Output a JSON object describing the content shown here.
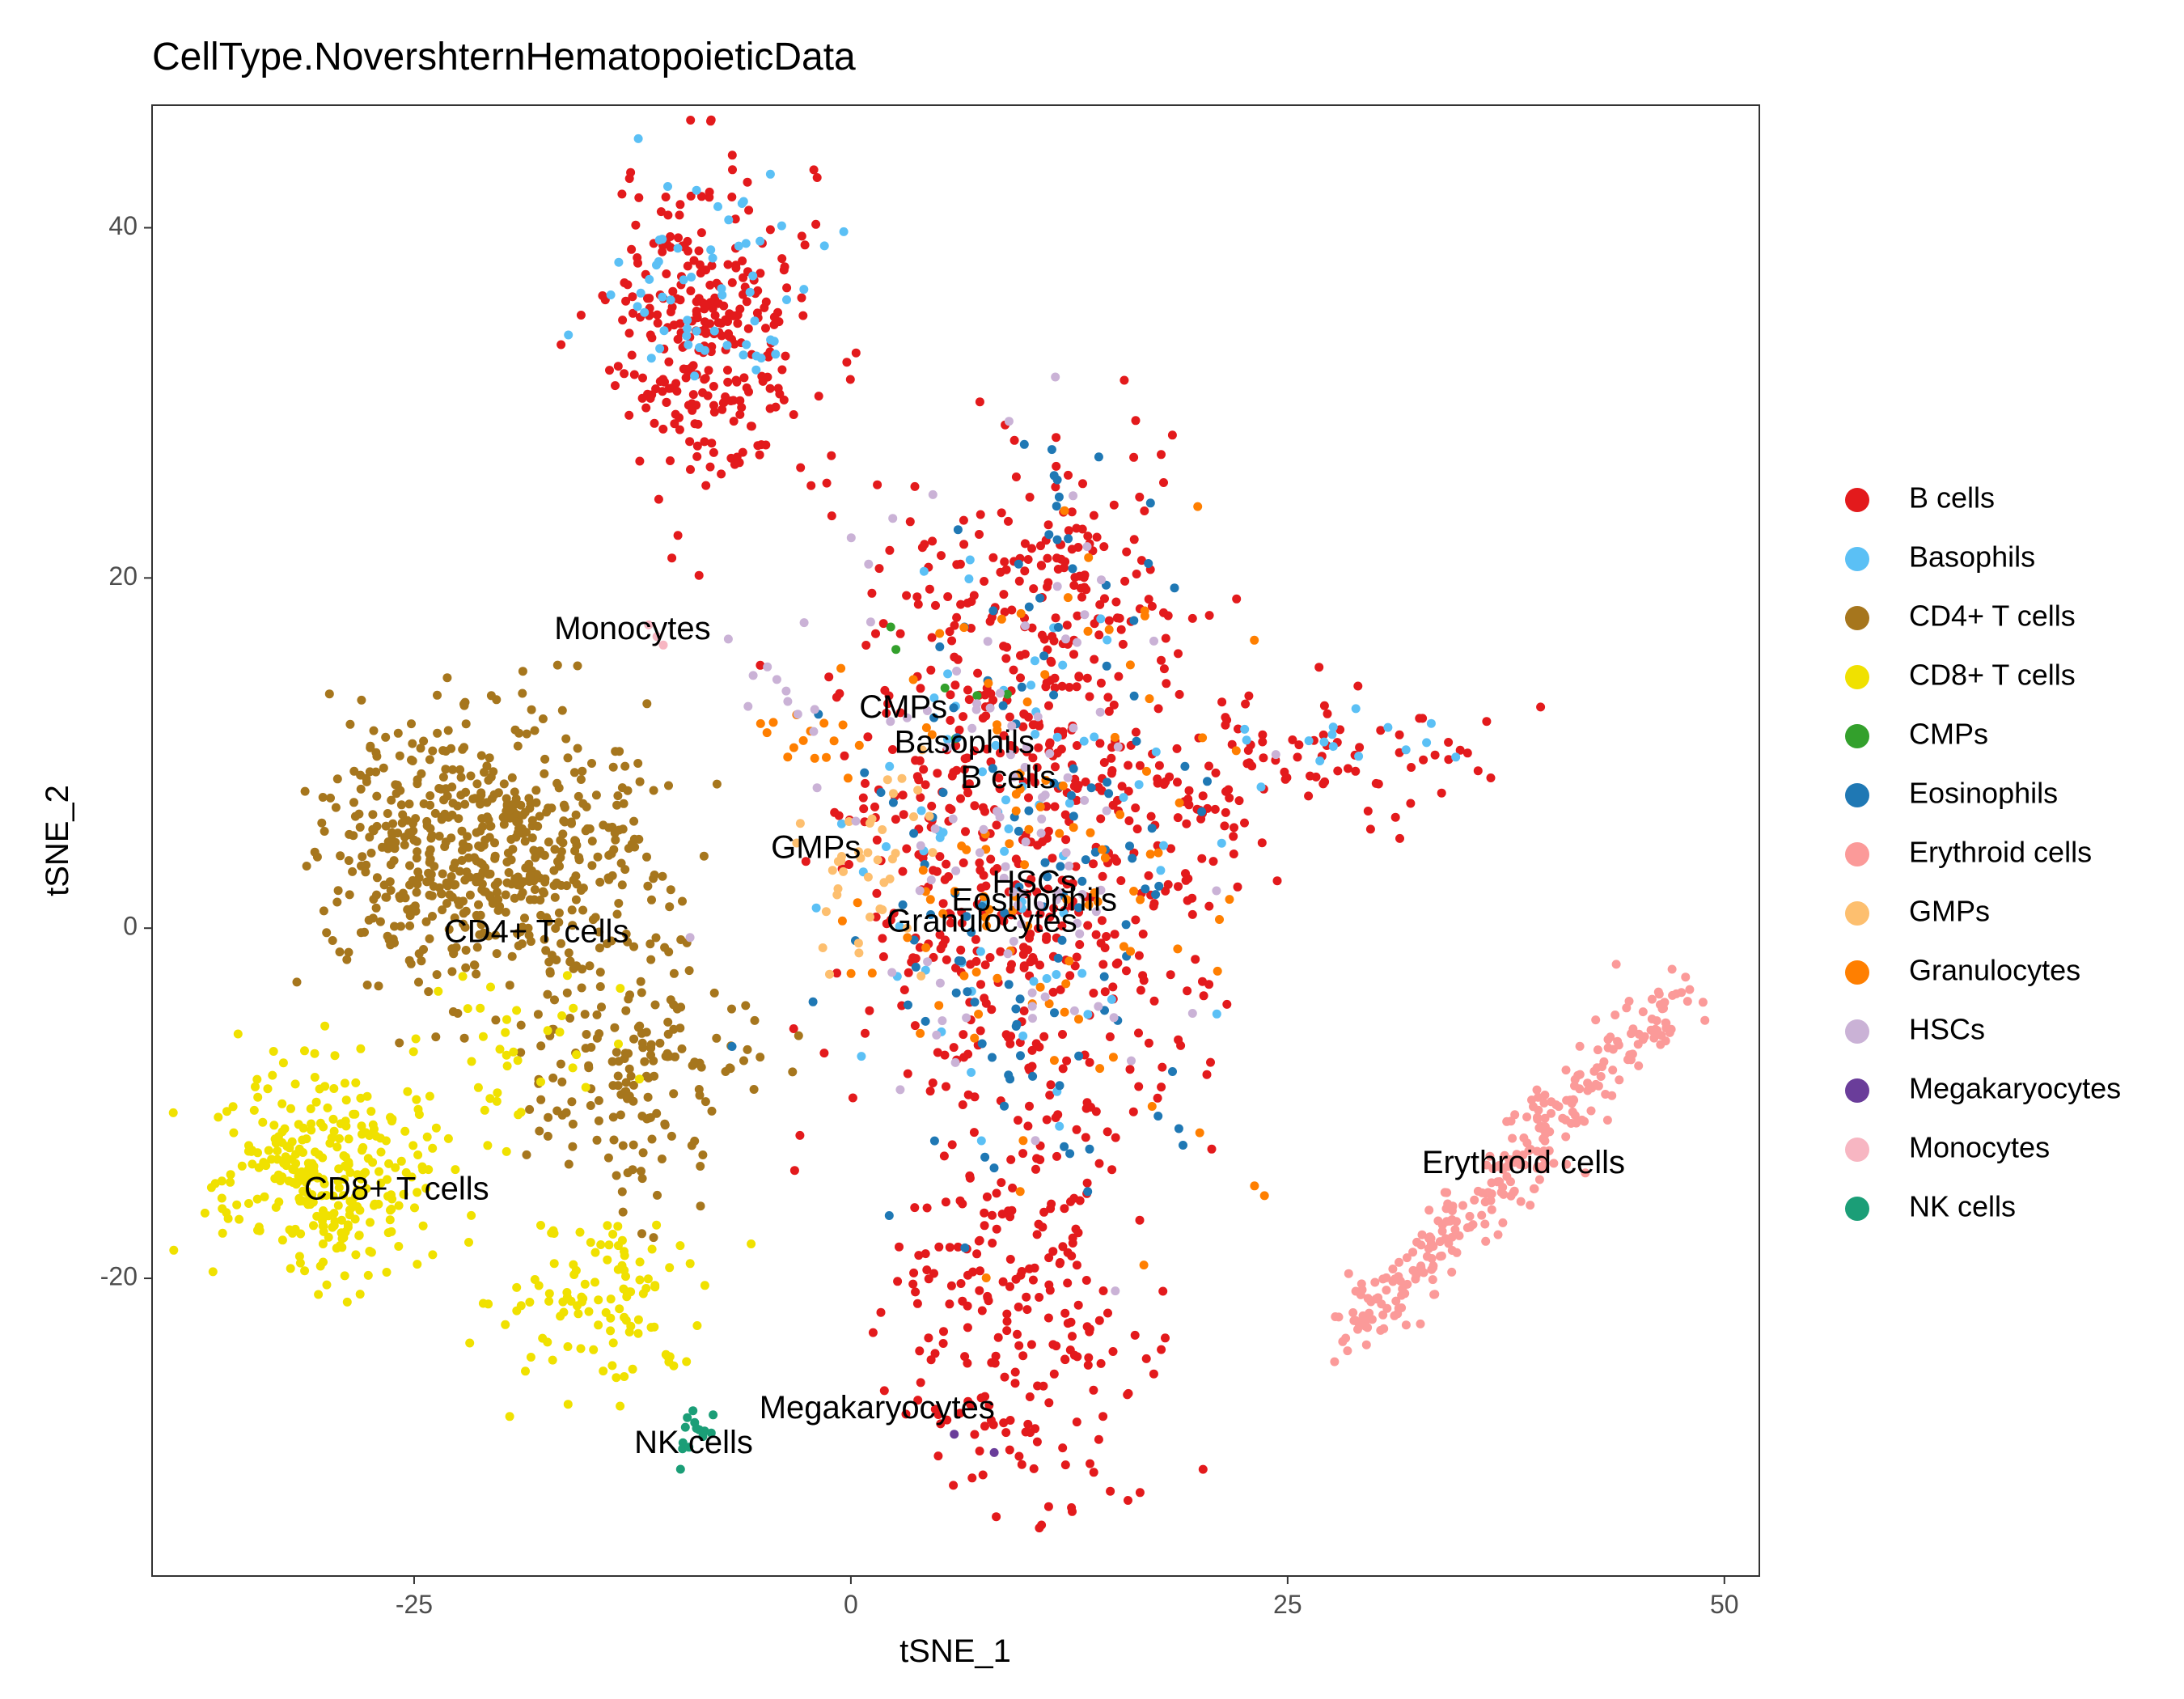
{
  "chart_data": {
    "type": "scatter",
    "title": "CellType.NovershternHematopoieticData",
    "xlabel": "tSNE_1",
    "ylabel": "tSNE_2",
    "xlim": [
      -40,
      52
    ],
    "ylim": [
      -37,
      47
    ],
    "xticks": [
      {
        "value": -25,
        "label": "-25"
      },
      {
        "value": 0,
        "label": "0"
      },
      {
        "value": 25,
        "label": "25"
      },
      {
        "value": 50,
        "label": "50"
      }
    ],
    "yticks": [
      {
        "value": -20,
        "label": "-20"
      },
      {
        "value": 0,
        "label": "0"
      },
      {
        "value": 20,
        "label": "20"
      },
      {
        "value": 40,
        "label": "40"
      }
    ],
    "grid": false,
    "legend_position": "right",
    "series": [
      {
        "name": "B cells",
        "color": "#e31a1c",
        "clusters": [
          {
            "cx": -8,
            "cy": 34,
            "sx": 2.8,
            "sy": 4.5,
            "n": 300
          },
          {
            "cx": 10,
            "cy": 5,
            "sx": 5.5,
            "sy": 9,
            "n": 520
          },
          {
            "cx": 11,
            "cy": 19,
            "sx": 4,
            "sy": 4,
            "n": 120
          },
          {
            "cx": 10,
            "cy": -22,
            "sx": 3.5,
            "sy": 6,
            "n": 220
          },
          {
            "cx": 28,
            "cy": 10,
            "sx": 4.5,
            "sy": 2,
            "n": 60
          },
          {
            "cx": 20,
            "cy": 7,
            "sx": 2.5,
            "sy": 4,
            "n": 40
          }
        ]
      },
      {
        "name": "Basophils",
        "color": "#5bc0f5",
        "clusters": [
          {
            "cx": -8,
            "cy": 36,
            "sx": 2.5,
            "sy": 3.5,
            "n": 60
          },
          {
            "cx": 10,
            "cy": 5,
            "sx": 5,
            "sy": 9,
            "n": 70
          },
          {
            "cx": 30,
            "cy": 11,
            "sx": 2.5,
            "sy": 1,
            "n": 15
          }
        ]
      },
      {
        "name": "CD4+ T cells",
        "color": "#a6761d",
        "clusters": [
          {
            "cx": -20,
            "cy": 4,
            "sx": 4.5,
            "sy": 4,
            "n": 520
          },
          {
            "cx": -12,
            "cy": -8,
            "sx": 3,
            "sy": 3.5,
            "n": 160
          },
          {
            "cx": -26,
            "cy": 6,
            "sx": 2.5,
            "sy": 3,
            "n": 80
          }
        ]
      },
      {
        "name": "CD8+ T cells",
        "color": "#f0e100",
        "clusters": [
          {
            "cx": -30,
            "cy": -14,
            "sx": 3,
            "sy": 3,
            "n": 300
          },
          {
            "cx": -14,
            "cy": -21,
            "sx": 3,
            "sy": 3,
            "n": 110
          },
          {
            "cx": -20,
            "cy": -7,
            "sx": 3,
            "sy": 2.5,
            "n": 40
          }
        ]
      },
      {
        "name": "CMPs",
        "color": "#33a02c",
        "clusters": [
          {
            "cx": 5,
            "cy": 15,
            "sx": 2,
            "sy": 2,
            "n": 6
          }
        ]
      },
      {
        "name": "Eosinophils",
        "color": "#1f78b4",
        "clusters": [
          {
            "cx": 10,
            "cy": 0,
            "sx": 5,
            "sy": 8,
            "n": 110
          },
          {
            "cx": 11,
            "cy": 20,
            "sx": 3,
            "sy": 4,
            "n": 20
          }
        ]
      },
      {
        "name": "Erythroid cells",
        "color": "#fb9a99",
        "clusters": [
          {
            "cx": 38.5,
            "cy": -14,
            "type": "line",
            "x0": 28.5,
            "y0": -23.5,
            "x1": 47.5,
            "y1": -3.5,
            "spread": 1.0,
            "n": 300
          }
        ]
      },
      {
        "name": "GMPs",
        "color": "#fdbf6f",
        "clusters": [
          {
            "cx": 1,
            "cy": 3,
            "sx": 2.5,
            "sy": 3,
            "n": 40
          }
        ]
      },
      {
        "name": "Granulocytes",
        "color": "#ff7f00",
        "clusters": [
          {
            "cx": 10,
            "cy": 3,
            "sx": 6,
            "sy": 9,
            "n": 110
          },
          {
            "cx": -3,
            "cy": 11,
            "sx": 2,
            "sy": 1.5,
            "n": 12
          }
        ]
      },
      {
        "name": "HSCs",
        "color": "#cab2d6",
        "clusters": [
          {
            "cx": 9,
            "cy": 6,
            "sx": 5,
            "sy": 9,
            "n": 100
          },
          {
            "cx": -5,
            "cy": 14,
            "sx": 1.5,
            "sy": 1.5,
            "n": 8
          }
        ]
      },
      {
        "name": "Megakaryocytes",
        "color": "#6a3d9a",
        "clusters": [
          {
            "cx": 6,
            "cy": -29,
            "sx": 1,
            "sy": 1,
            "n": 2
          }
        ]
      },
      {
        "name": "Monocytes",
        "color": "#f7b6c2",
        "clusters": [
          {
            "cx": -10.5,
            "cy": 16.5,
            "sx": 0.6,
            "sy": 0.6,
            "n": 3
          }
        ]
      },
      {
        "name": "NK cells",
        "color": "#1b9e77",
        "clusters": [
          {
            "cx": -9,
            "cy": -29,
            "sx": 0.6,
            "sy": 1,
            "n": 14
          }
        ]
      }
    ],
    "annotations": [
      {
        "text": "Monocytes",
        "x": -12.5,
        "y": 17
      },
      {
        "text": "CMPs",
        "x": 3,
        "y": 12.5
      },
      {
        "text": "Basophils",
        "x": 6.5,
        "y": 10.5
      },
      {
        "text": "B cells",
        "x": 9,
        "y": 8.5
      },
      {
        "text": "GMPs",
        "x": -2,
        "y": 4.5
      },
      {
        "text": "HSCs",
        "x": 10.5,
        "y": 2.5
      },
      {
        "text": "Eosinophils",
        "x": 10.5,
        "y": 1.5
      },
      {
        "text": "Granulocytes",
        "x": 7.5,
        "y": 0.3
      },
      {
        "text": "CD4+ T cells",
        "x": -18,
        "y": -0.3
      },
      {
        "text": "CD8+ T cells",
        "x": -26,
        "y": -15
      },
      {
        "text": "Erythroid cells",
        "x": 38.5,
        "y": -13.5
      },
      {
        "text": "Megakaryocytes",
        "x": 1.5,
        "y": -27.5
      },
      {
        "text": "NK cells",
        "x": -9,
        "y": -29.5
      }
    ]
  }
}
